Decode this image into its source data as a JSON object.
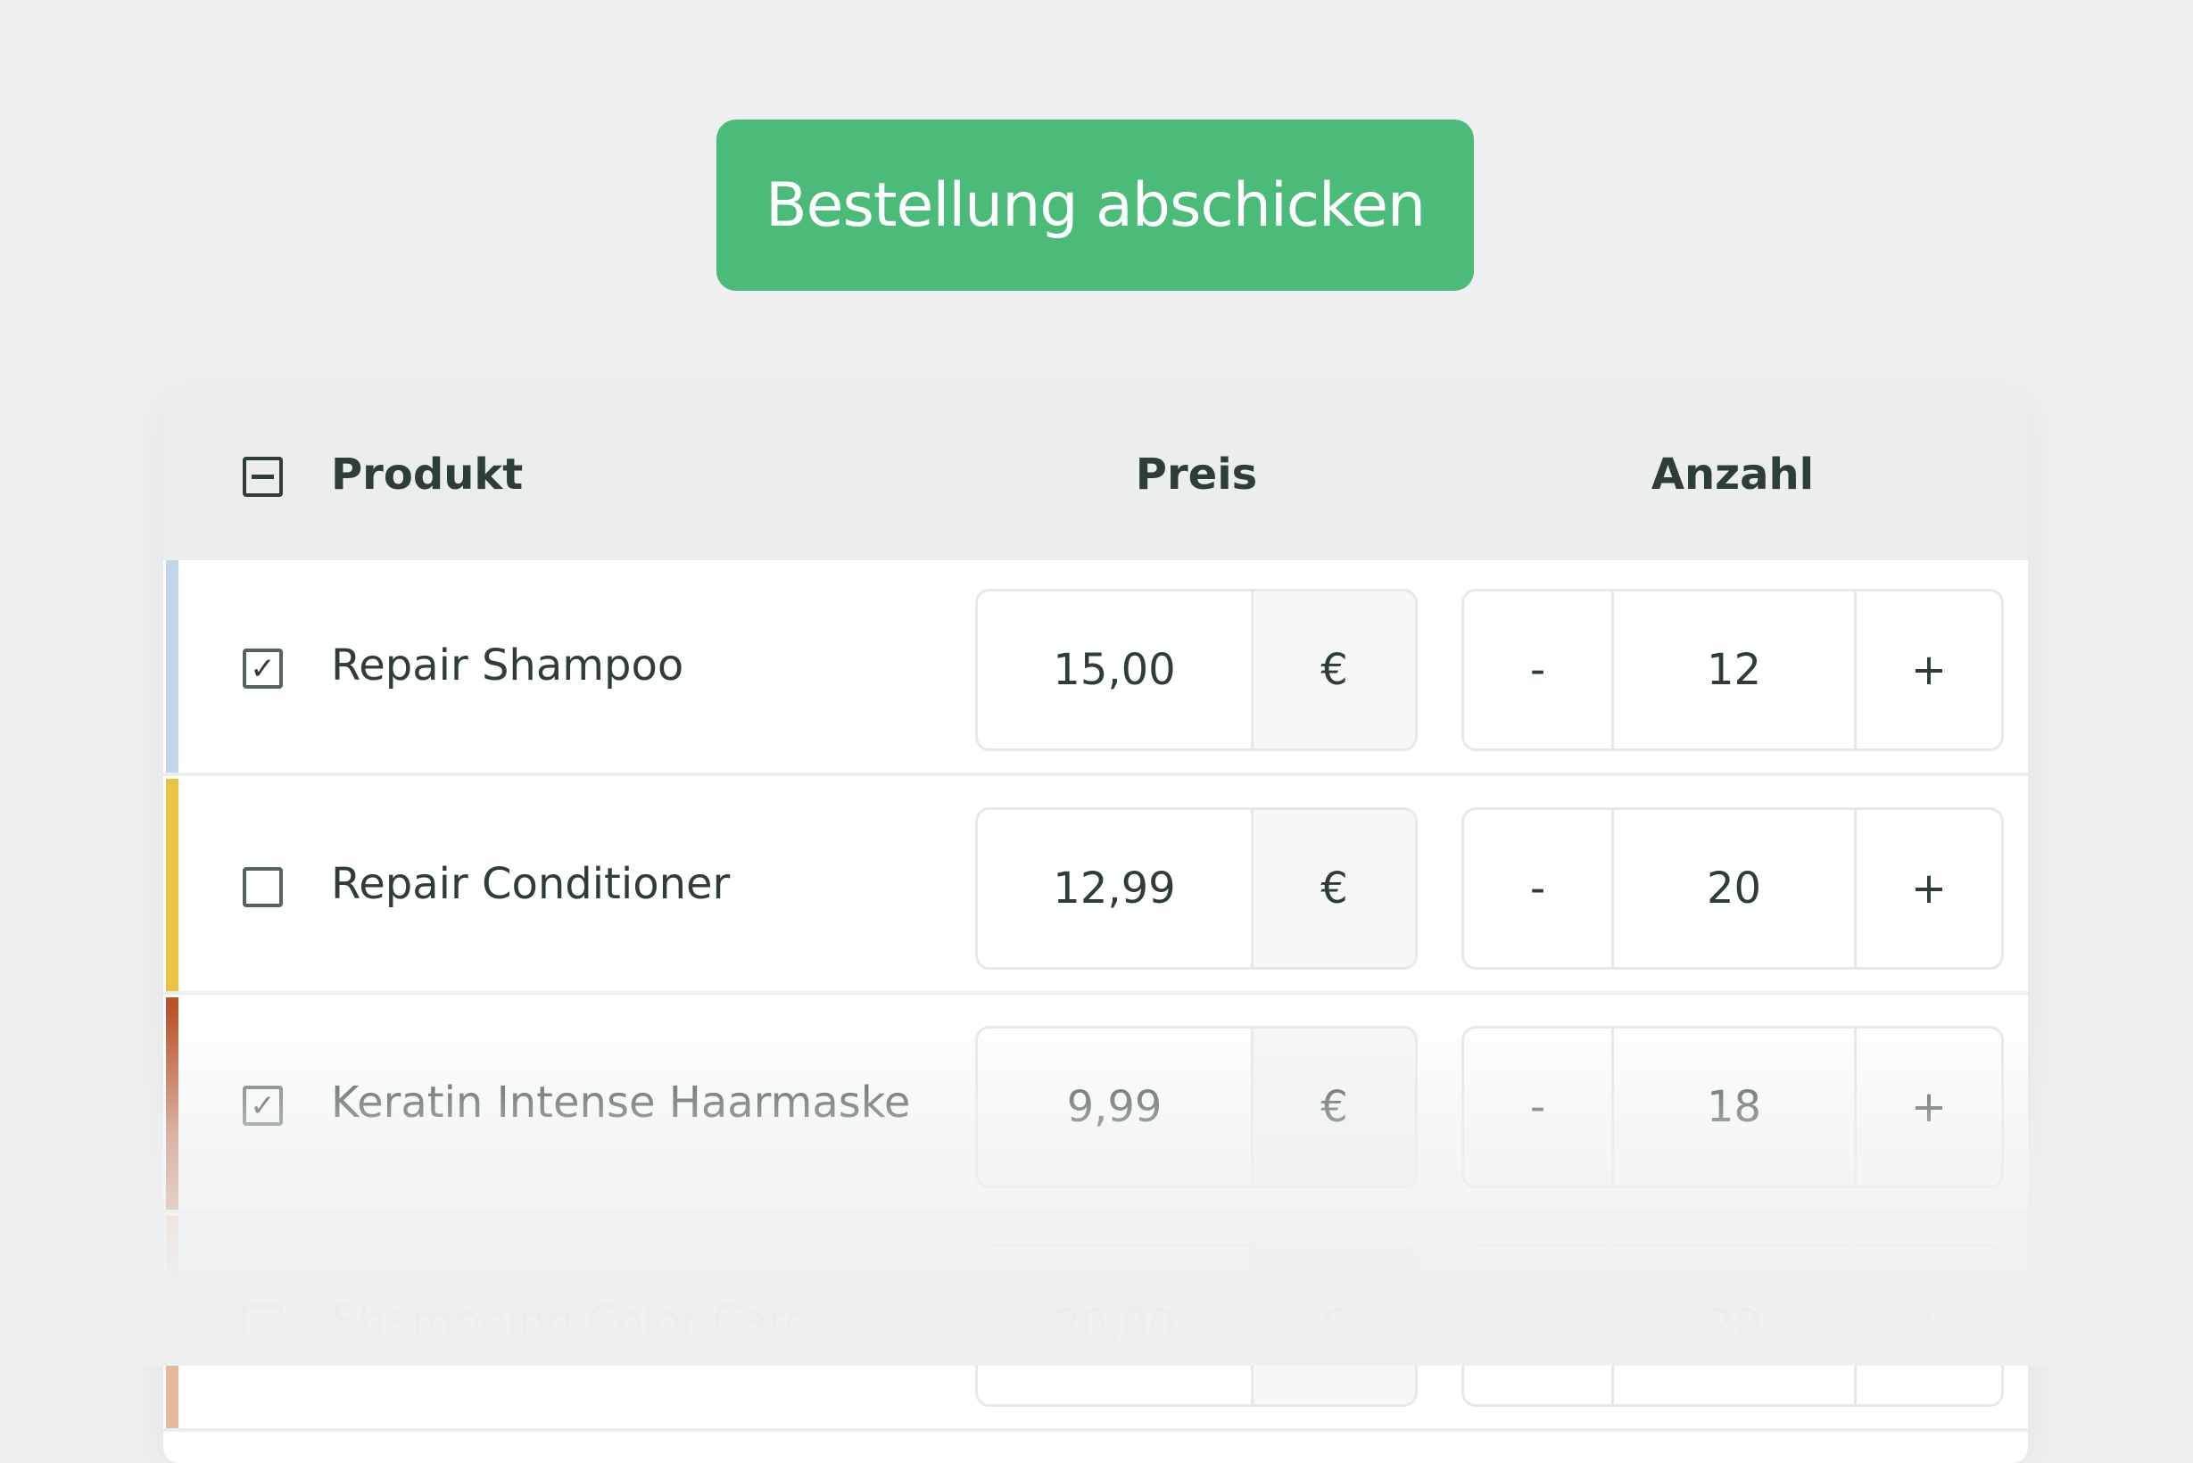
{
  "submit_label": "Bestellung abschicken",
  "table": {
    "headers": {
      "product": "Produkt",
      "price": "Preis",
      "quantity": "Anzahl"
    },
    "select_all_state": "indeterminate",
    "rows": [
      {
        "name": "Repair Shampoo",
        "checked": true,
        "price": "15,00",
        "currency": "€",
        "quantity": "12",
        "minus": "-",
        "plus": "+",
        "color": "#c2d6ea"
      },
      {
        "name": "Repair Conditioner",
        "checked": false,
        "price": "12,99",
        "currency": "€",
        "quantity": "20",
        "minus": "-",
        "plus": "+",
        "color": "#eac244"
      },
      {
        "name": "Keratin Intense Haarmaske",
        "checked": true,
        "price": "9,99",
        "currency": "€",
        "quantity": "18",
        "minus": "-",
        "plus": "+",
        "color": "#b9532a"
      },
      {
        "name": "Shampoing Color Care",
        "checked": true,
        "price": "20,00",
        "currency": "€",
        "quantity": "20",
        "minus": "-",
        "plus": "+",
        "color": "#e8b89c"
      }
    ]
  }
}
